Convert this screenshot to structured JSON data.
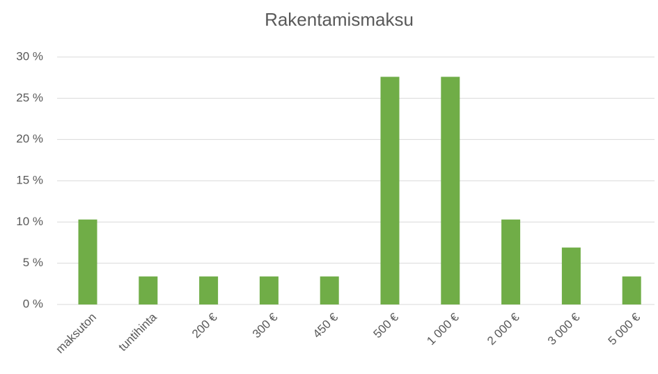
{
  "chart_data": {
    "type": "bar",
    "title": "Rakentamismaksu",
    "categories": [
      "maksuton",
      "tuntihinta",
      "200 €",
      "300 €",
      "450 €",
      "500 €",
      "1 000 €",
      "2 000 €",
      "3 000 €",
      "5 000 €"
    ],
    "values": [
      10.3,
      3.4,
      3.4,
      3.4,
      3.4,
      27.6,
      27.6,
      10.3,
      6.9,
      3.4
    ],
    "color": "#70ad47",
    "ylim": [
      0,
      30
    ],
    "yticks": [
      {
        "value": 0,
        "label": "0 %"
      },
      {
        "value": 5,
        "label": "5 %"
      },
      {
        "value": 10,
        "label": "10 %"
      },
      {
        "value": 15,
        "label": "15 %"
      },
      {
        "value": 20,
        "label": "20 %"
      },
      {
        "value": 25,
        "label": "25 %"
      },
      {
        "value": 30,
        "label": "30 %"
      }
    ],
    "grid": true
  }
}
